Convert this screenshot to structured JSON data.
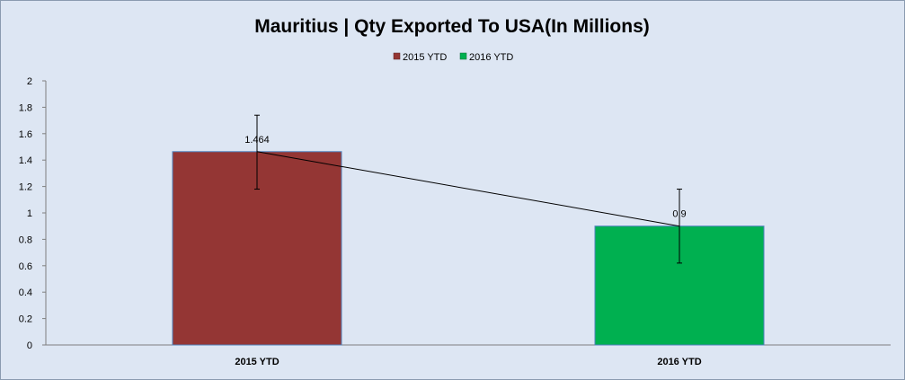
{
  "chart_data": {
    "type": "bar",
    "title": "Mauritius | Qty Exported To USA(In Millions)",
    "categories": [
      "2015 YTD",
      "2016 YTD"
    ],
    "series": [
      {
        "name": "2015 YTD",
        "values": [
          1.464,
          null
        ],
        "color": "#943634"
      },
      {
        "name": "2016 YTD",
        "values": [
          null,
          0.9
        ],
        "color": "#00b050"
      }
    ],
    "values": [
      1.464,
      0.9
    ],
    "data_labels": [
      "1.464",
      "0.9"
    ],
    "error_bar_ranges": [
      [
        1.18,
        1.74
      ],
      [
        0.62,
        1.18
      ]
    ],
    "trend_line": true,
    "xlabel": "",
    "ylabel": "",
    "ylim": [
      0,
      2
    ],
    "yticks": [
      "0",
      "0.2",
      "0.4",
      "0.6",
      "0.8",
      "1",
      "1.2",
      "1.4",
      "1.6",
      "1.8",
      "2"
    ],
    "grid": false,
    "legend_position": "top",
    "background_color": "#dde6f3"
  }
}
